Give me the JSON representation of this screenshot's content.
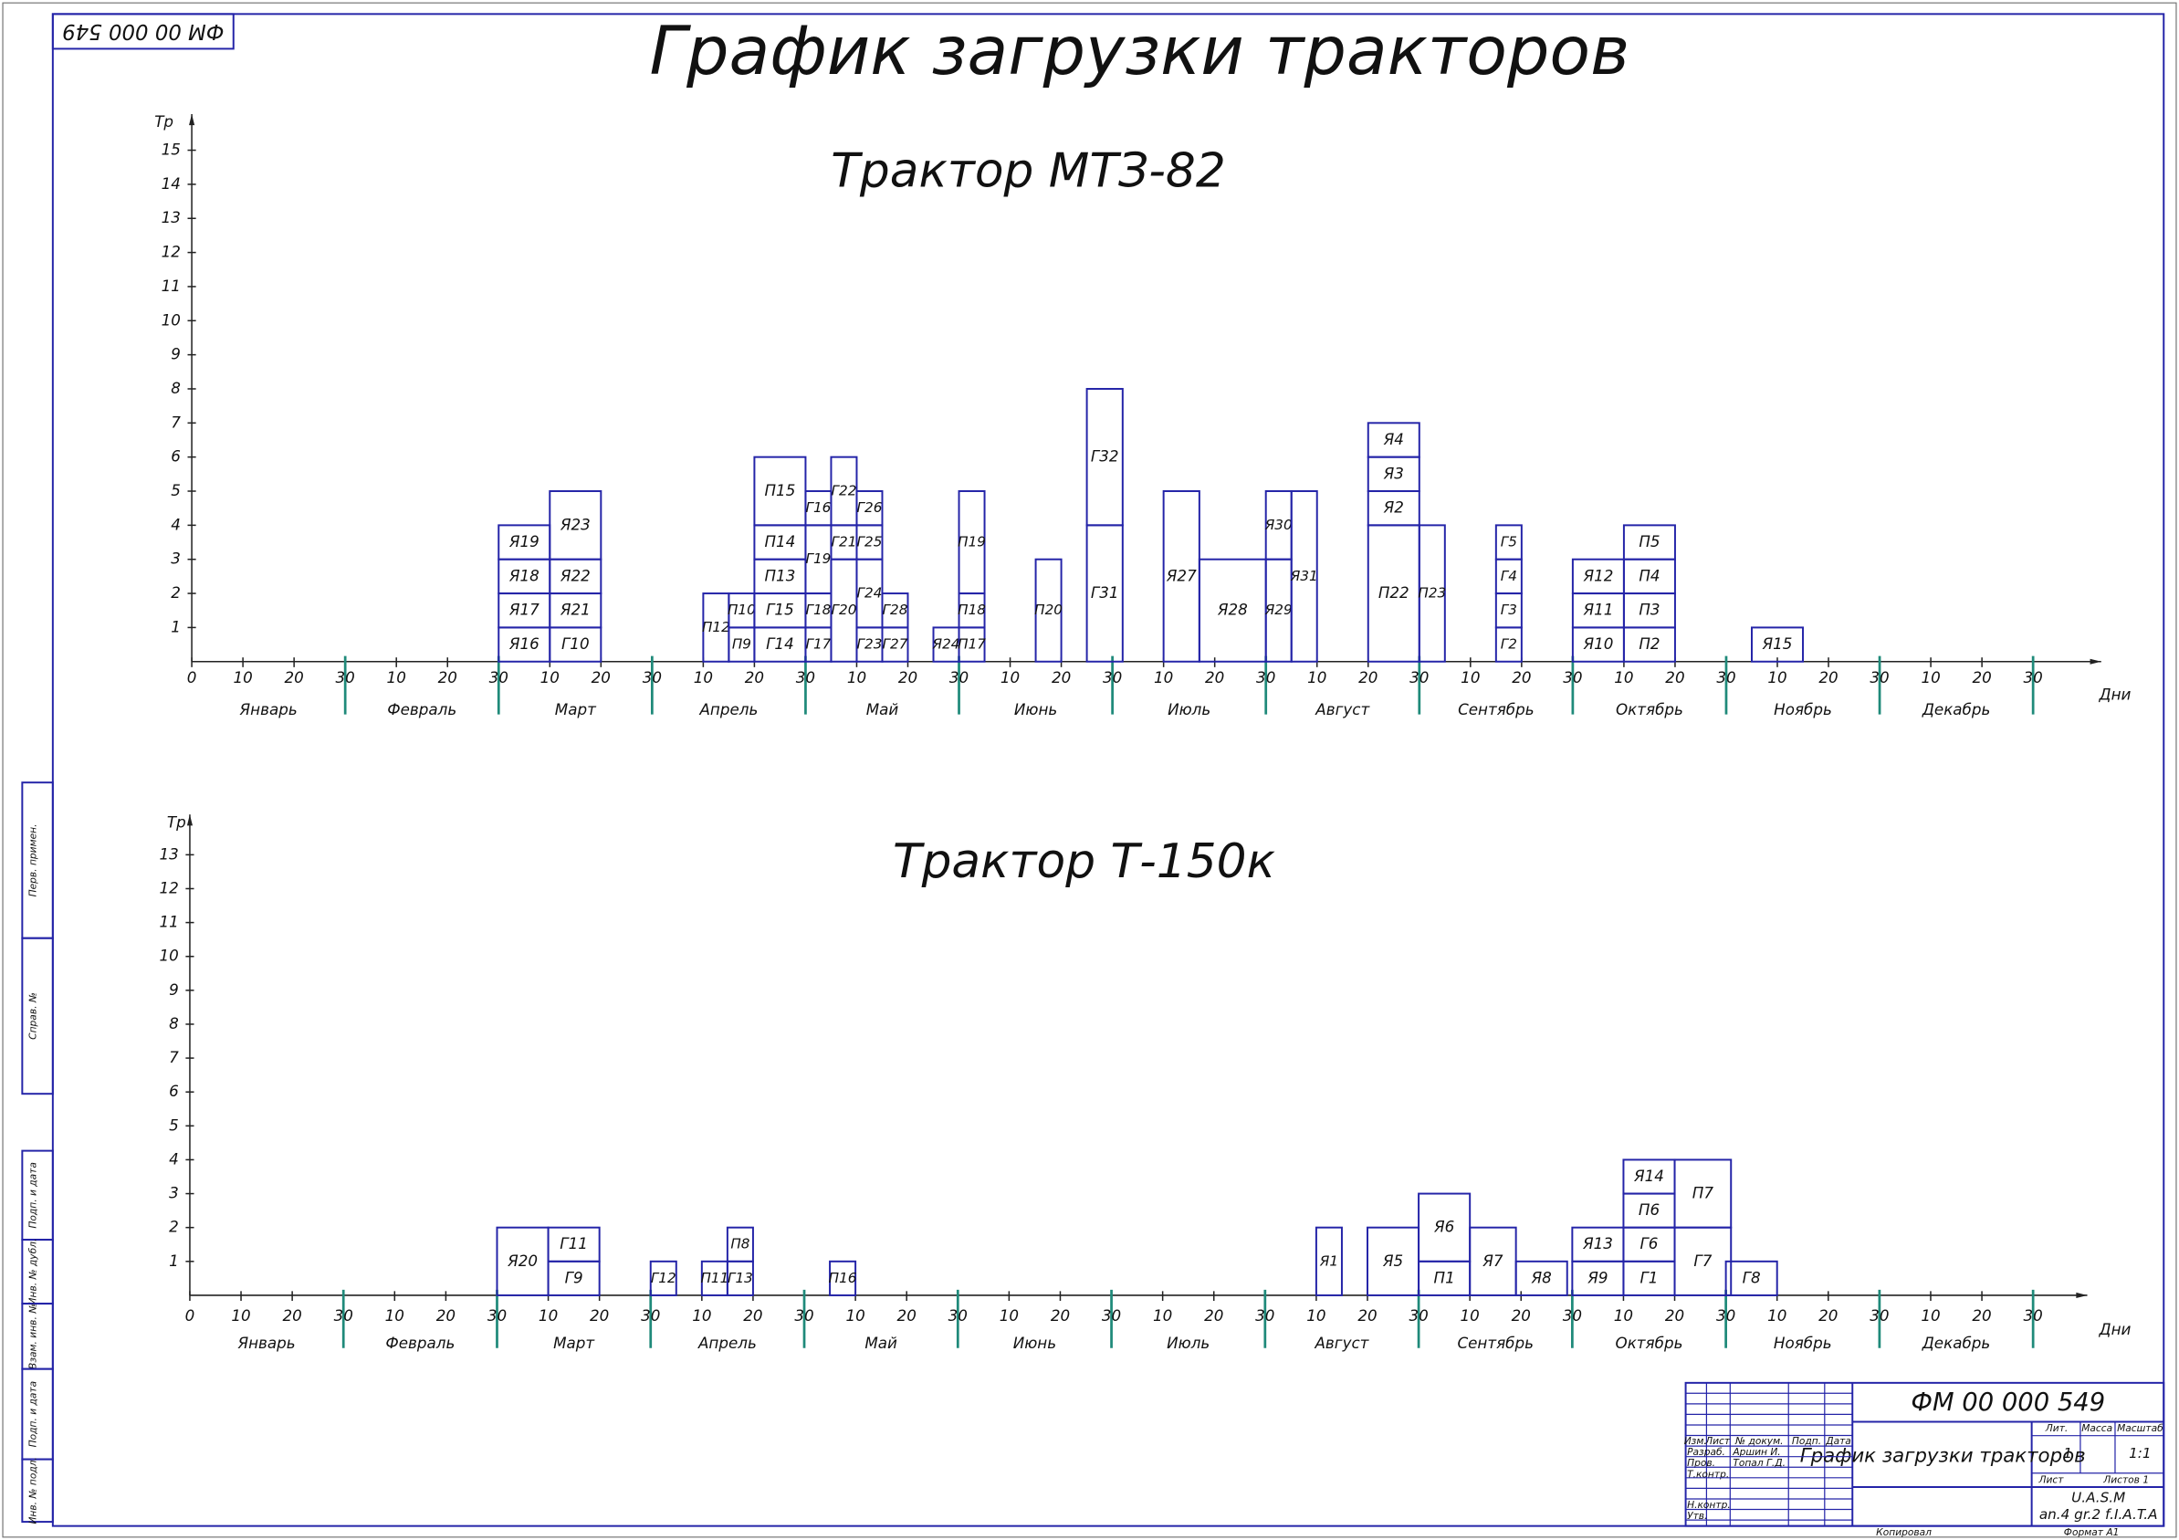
{
  "drawing": {
    "code_stamp": "ФМ 00 000 549",
    "title": "График загрузки тракторов",
    "side_labels": [
      "Перв. примен.",
      "Справ. №",
      "Подп. и дата",
      "Инв. № дубл.",
      "Взам. инв. №",
      "Подп. и дата",
      "Инв. № подл."
    ],
    "title_block": {
      "code": "ФМ 00 000 549",
      "name": "График загрузки тракторов",
      "head": [
        "Изм.",
        "Лист",
        "№ докум.",
        "Подп.",
        "Дата"
      ],
      "roles": [
        "Разраб.",
        "Пров.",
        "Т.контр.",
        "Н.контр.",
        "Утв."
      ],
      "people": [
        "Аршин И.",
        "Топал Г.Д."
      ],
      "lit": "Лит.",
      "mass": "Масса",
      "scale_head": "Масштаб",
      "lit_value": "1",
      "scale": "1:1",
      "sheet": "Лист",
      "sheets": "Листов   1",
      "org": "U.A.S.M",
      "group": "an.4  gr.2  f.I.A.T.A",
      "copied": "Копировал",
      "format": "Формат   A1"
    }
  },
  "chart_data": [
    {
      "type": "stacked-timeline",
      "title": "Трактор МТЗ-82",
      "y_label": "Тр",
      "x_label": "Дни",
      "color": "#2424a8",
      "months": [
        "Январь",
        "Февраль",
        "Март",
        "Апрель",
        "Май",
        "Июнь",
        "Июль",
        "Август",
        "Сентябрь",
        "Октябрь",
        "Ноябрь",
        "Декабрь"
      ],
      "xlim": [
        0,
        360
      ],
      "xticks": [
        0,
        10,
        20,
        30,
        {
          "value": 40,
          "label": "10"
        },
        {
          "value": 50,
          "label": "20"
        },
        {
          "value": 60,
          "label": "30"
        },
        {
          "value": 70,
          "label": "10"
        },
        {
          "value": 80,
          "label": "20"
        },
        {
          "value": 90,
          "label": "30"
        },
        {
          "value": 100,
          "label": "10"
        },
        {
          "value": 110,
          "label": "20"
        },
        {
          "value": 120,
          "label": "30"
        },
        {
          "value": 130,
          "label": "10"
        },
        {
          "value": 140,
          "label": "20"
        },
        {
          "value": 150,
          "label": "30"
        },
        {
          "value": 160,
          "label": "10"
        },
        {
          "value": 170,
          "label": "20"
        },
        {
          "value": 180,
          "label": "30"
        },
        {
          "value": 190,
          "label": "10"
        },
        {
          "value": 200,
          "label": "20"
        },
        {
          "value": 210,
          "label": "30"
        },
        {
          "value": 220,
          "label": "10"
        },
        {
          "value": 230,
          "label": "20"
        },
        {
          "value": 240,
          "label": "30"
        },
        {
          "value": 250,
          "label": "10"
        },
        {
          "value": 260,
          "label": "20"
        },
        {
          "value": 270,
          "label": "30"
        },
        {
          "value": 280,
          "label": "10"
        },
        {
          "value": 290,
          "label": "20"
        },
        {
          "value": 300,
          "label": "30"
        },
        {
          "value": 310,
          "label": "10"
        },
        {
          "value": 320,
          "label": "20"
        },
        {
          "value": 330,
          "label": "30"
        },
        {
          "value": 340,
          "label": "10"
        },
        {
          "value": 350,
          "label": "20"
        },
        {
          "value": 360,
          "label": "30"
        }
      ],
      "ylim": [
        0,
        15
      ],
      "yticks": [
        1,
        2,
        3,
        4,
        5,
        6,
        7,
        8,
        9,
        10,
        11,
        12,
        13,
        14,
        15
      ],
      "columns": [
        {
          "start": 60,
          "end": 70,
          "segments": [
            {
              "label": "Я16",
              "value": 1
            },
            {
              "label": "Я17",
              "value": 1
            },
            {
              "label": "Я18",
              "value": 1
            },
            {
              "label": "Я19",
              "value": 1
            }
          ]
        },
        {
          "start": 70,
          "end": 80,
          "segments": [
            {
              "label": "Г10",
              "value": 1
            },
            {
              "label": "Я21",
              "value": 1
            },
            {
              "label": "Я22",
              "value": 1
            },
            {
              "label": "Я23",
              "value": 2
            }
          ]
        },
        {
          "start": 100,
          "end": 105,
          "segments": [
            {
              "label": "П12",
              "value": 2
            }
          ]
        },
        {
          "start": 105,
          "end": 110,
          "segments": [
            {
              "label": "П9",
              "value": 1
            },
            {
              "label": "П10",
              "value": 1
            }
          ]
        },
        {
          "start": 110,
          "end": 120,
          "segments": [
            {
              "label": "Г14",
              "value": 1
            },
            {
              "label": "Г15",
              "value": 1
            },
            {
              "label": "П13",
              "value": 1
            },
            {
              "label": "П14",
              "value": 1
            },
            {
              "label": "П15",
              "value": 2
            }
          ]
        },
        {
          "start": 120,
          "end": 125,
          "segments": [
            {
              "label": "Г17",
              "value": 1
            },
            {
              "label": "Г18",
              "value": 1
            },
            {
              "label": "Г19",
              "value": 2
            },
            {
              "label": "Г16",
              "value": 1
            }
          ]
        },
        {
          "start": 125,
          "end": 130,
          "segments": [
            {
              "label": "Г20",
              "value": 3
            },
            {
              "label": "Г21",
              "value": 1
            },
            {
              "label": "Г22",
              "value": 2
            }
          ]
        },
        {
          "start": 130,
          "end": 135,
          "segments": [
            {
              "label": "Г23",
              "value": 1
            },
            {
              "label": "Г24",
              "value": 2
            },
            {
              "label": "Г25",
              "value": 1
            },
            {
              "label": "Г26",
              "value": 1
            }
          ]
        },
        {
          "start": 135,
          "end": 140,
          "segments": [
            {
              "label": "Г27",
              "value": 1
            },
            {
              "label": "Г28",
              "value": 1
            }
          ]
        },
        {
          "start": 145,
          "end": 150,
          "segments": [
            {
              "label": "Я24",
              "value": 1
            }
          ]
        },
        {
          "start": 150,
          "end": 155,
          "segments": [
            {
              "label": "П17",
              "value": 1
            },
            {
              "label": "П18",
              "value": 1
            },
            {
              "label": "П19",
              "value": 3
            }
          ]
        },
        {
          "start": 165,
          "end": 170,
          "segments": [
            {
              "label": "П20",
              "value": 3
            }
          ]
        },
        {
          "start": 175,
          "end": 182,
          "segments": [
            {
              "label": "Г31",
              "value": 4
            },
            {
              "label": "Г32",
              "value": 4
            }
          ]
        },
        {
          "start": 190,
          "end": 197,
          "segments": [
            {
              "label": "Я27",
              "value": 5
            }
          ]
        },
        {
          "start": 197,
          "end": 210,
          "segments": [
            {
              "label": "Я28",
              "value": 3
            }
          ]
        },
        {
          "start": 210,
          "end": 215,
          "segments": [
            {
              "label": "Я29",
              "value": 3
            },
            {
              "label": "Я30",
              "value": 2
            }
          ]
        },
        {
          "start": 215,
          "end": 220,
          "segments": [
            {
              "label": "Я31",
              "value": 5
            }
          ]
        },
        {
          "start": 230,
          "end": 240,
          "segments": [
            {
              "label": "П22",
              "value": 4
            },
            {
              "label": "Я2",
              "value": 1
            },
            {
              "label": "Я3",
              "value": 1
            },
            {
              "label": "Я4",
              "value": 1
            }
          ]
        },
        {
          "start": 240,
          "end": 245,
          "segments": [
            {
              "label": "П23",
              "value": 4
            }
          ]
        },
        {
          "start": 255,
          "end": 260,
          "segments": [
            {
              "label": "Г2",
              "value": 1
            },
            {
              "label": "Г3",
              "value": 1
            },
            {
              "label": "Г4",
              "value": 1
            },
            {
              "label": "Г5",
              "value": 1
            }
          ]
        },
        {
          "start": 270,
          "end": 280,
          "segments": [
            {
              "label": "Я10",
              "value": 1
            },
            {
              "label": "Я11",
              "value": 1
            },
            {
              "label": "Я12",
              "value": 1
            }
          ]
        },
        {
          "start": 280,
          "end": 290,
          "segments": [
            {
              "label": "П2",
              "value": 1
            },
            {
              "label": "П3",
              "value": 1
            },
            {
              "label": "П4",
              "value": 1
            },
            {
              "label": "П5",
              "value": 1
            }
          ]
        },
        {
          "start": 305,
          "end": 315,
          "segments": [
            {
              "label": "Я15",
              "value": 1
            }
          ]
        }
      ]
    },
    {
      "type": "stacked-timeline",
      "title": "Трактор Т-150к",
      "y_label": "Тр",
      "x_label": "Дни",
      "color": "#2424a8",
      "months": [
        "Январь",
        "Февраль",
        "Март",
        "Апрель",
        "Май",
        "Июнь",
        "Июль",
        "Август",
        "Сентябрь",
        "Октябрь",
        "Ноябрь",
        "Декабрь"
      ],
      "xlim": [
        0,
        360
      ],
      "xticks": [
        0,
        10,
        20,
        30,
        {
          "value": 40,
          "label": "10"
        },
        {
          "value": 50,
          "label": "20"
        },
        {
          "value": 60,
          "label": "30"
        },
        {
          "value": 70,
          "label": "10"
        },
        {
          "value": 80,
          "label": "20"
        },
        {
          "value": 90,
          "label": "30"
        },
        {
          "value": 100,
          "label": "10"
        },
        {
          "value": 110,
          "label": "20"
        },
        {
          "value": 120,
          "label": "30"
        },
        {
          "value": 130,
          "label": "10"
        },
        {
          "value": 140,
          "label": "20"
        },
        {
          "value": 150,
          "label": "30"
        },
        {
          "value": 160,
          "label": "10"
        },
        {
          "value": 170,
          "label": "20"
        },
        {
          "value": 180,
          "label": "30"
        },
        {
          "value": 190,
          "label": "10"
        },
        {
          "value": 200,
          "label": "20"
        },
        {
          "value": 210,
          "label": "30"
        },
        {
          "value": 220,
          "label": "10"
        },
        {
          "value": 230,
          "label": "20"
        },
        {
          "value": 240,
          "label": "30"
        },
        {
          "value": 250,
          "label": "10"
        },
        {
          "value": 260,
          "label": "20"
        },
        {
          "value": 270,
          "label": "30"
        },
        {
          "value": 280,
          "label": "10"
        },
        {
          "value": 290,
          "label": "20"
        },
        {
          "value": 300,
          "label": "30"
        },
        {
          "value": 310,
          "label": "10"
        },
        {
          "value": 320,
          "label": "20"
        },
        {
          "value": 330,
          "label": "30"
        },
        {
          "value": 340,
          "label": "10"
        },
        {
          "value": 350,
          "label": "20"
        },
        {
          "value": 360,
          "label": "30"
        }
      ],
      "ylim": [
        0,
        13
      ],
      "yticks": [
        1,
        2,
        3,
        4,
        5,
        6,
        7,
        8,
        9,
        10,
        11,
        12,
        13
      ],
      "columns": [
        {
          "start": 60,
          "end": 70,
          "segments": [
            {
              "label": "Я20",
              "value": 2
            }
          ]
        },
        {
          "start": 70,
          "end": 80,
          "segments": [
            {
              "label": "Г9",
              "value": 1
            },
            {
              "label": "Г11",
              "value": 1
            }
          ]
        },
        {
          "start": 90,
          "end": 95,
          "segments": [
            {
              "label": "Г12",
              "value": 1
            }
          ]
        },
        {
          "start": 100,
          "end": 105,
          "segments": [
            {
              "label": "П11",
              "value": 1
            }
          ]
        },
        {
          "start": 105,
          "end": 110,
          "segments": [
            {
              "label": "Г13",
              "value": 1
            },
            {
              "label": "П8",
              "value": 1
            }
          ]
        },
        {
          "start": 125,
          "end": 130,
          "segments": [
            {
              "label": "П16",
              "value": 1
            }
          ]
        },
        {
          "start": 220,
          "end": 225,
          "segments": [
            {
              "label": "Я1",
              "value": 2
            }
          ]
        },
        {
          "start": 230,
          "end": 240,
          "segments": [
            {
              "label": "Я5",
              "value": 2
            }
          ]
        },
        {
          "start": 240,
          "end": 250,
          "segments": [
            {
              "label": "П1",
              "value": 1
            },
            {
              "label": "Я6",
              "value": 2
            }
          ]
        },
        {
          "start": 250,
          "end": 259,
          "segments": [
            {
              "label": "Я7",
              "value": 2
            }
          ]
        },
        {
          "start": 259,
          "end": 269,
          "segments": [
            {
              "label": "Я8",
              "value": 1
            }
          ]
        },
        {
          "start": 270,
          "end": 280,
          "segments": [
            {
              "label": "Я9",
              "value": 1
            },
            {
              "label": "Я13",
              "value": 1
            }
          ]
        },
        {
          "start": 280,
          "end": 290,
          "segments": [
            {
              "label": "Г1",
              "value": 1
            },
            {
              "label": "Г6",
              "value": 1
            },
            {
              "label": "П6",
              "value": 1
            },
            {
              "label": "Я14",
              "value": 1
            }
          ]
        },
        {
          "start": 290,
          "end": 301,
          "segments": [
            {
              "label": "Г7",
              "value": 2
            },
            {
              "label": "П7",
              "value": 2
            }
          ]
        },
        {
          "start": 300,
          "end": 310,
          "segments": [
            {
              "label": "Г8",
              "value": 1
            }
          ]
        }
      ]
    }
  ]
}
